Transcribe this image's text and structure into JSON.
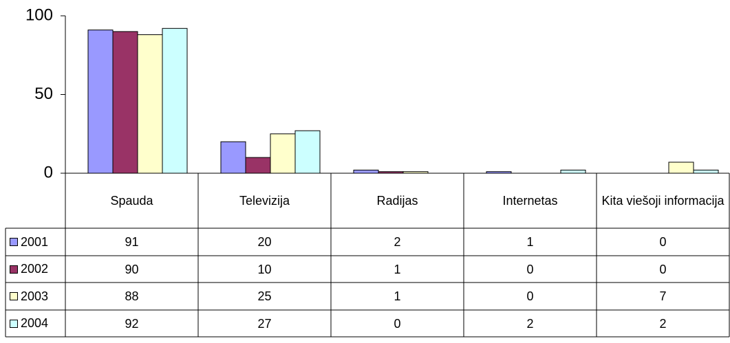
{
  "chart_data": {
    "type": "bar",
    "categories": [
      "Spauda",
      "Televizija",
      "Radijas",
      "Internetas",
      "Kita viešoji informacija"
    ],
    "series": [
      {
        "name": "2001",
        "color": "#9999ff",
        "values": [
          91,
          20,
          2,
          1,
          0
        ]
      },
      {
        "name": "2002",
        "color": "#993366",
        "values": [
          90,
          10,
          1,
          0,
          0
        ]
      },
      {
        "name": "2003",
        "color": "#ffffcc",
        "values": [
          88,
          25,
          1,
          0,
          7
        ]
      },
      {
        "name": "2004",
        "color": "#ccffff",
        "values": [
          92,
          27,
          0,
          2,
          2
        ]
      }
    ],
    "ylim": [
      0,
      100
    ],
    "yticks": [
      0,
      50,
      100
    ],
    "grid": false,
    "data_table": true
  }
}
